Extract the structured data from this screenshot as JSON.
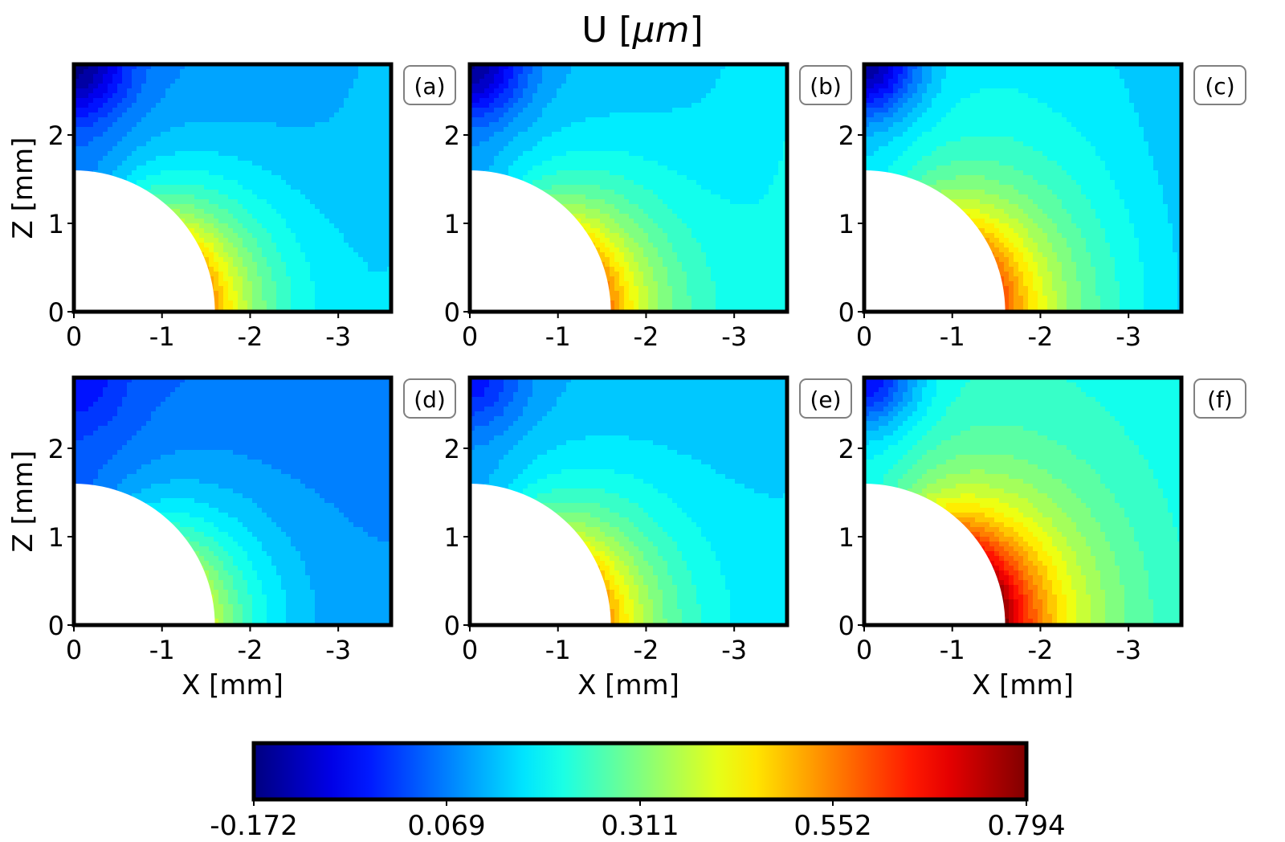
{
  "title": "U [",
  "title_unit": "μm",
  "title_close": "]",
  "chart_data": {
    "type": "heatmap",
    "title": "U [μm]",
    "colormap": "jet",
    "colorbar": {
      "min": -0.172,
      "max": 0.794,
      "ticks": [
        "-0.172",
        "0.069",
        "0.311",
        "0.552",
        "0.794"
      ],
      "tick_values": [
        -0.172,
        0.069,
        0.311,
        0.552,
        0.794
      ],
      "orientation": "horizontal"
    },
    "xlabel": "X [mm]",
    "ylabel": "Z [mm]",
    "xlim": [
      0,
      -3.6
    ],
    "ylim": [
      0,
      2.8
    ],
    "x_ticks": [
      "0",
      "-1",
      "-2",
      "-3"
    ],
    "x_tick_values": [
      0,
      -1,
      -2,
      -3
    ],
    "y_ticks": [
      "0",
      "1",
      "2"
    ],
    "y_tick_values": [
      0,
      1,
      2
    ],
    "hole_radius_mm": 1.6,
    "panels": [
      {
        "label": "(a)",
        "peak": 0.53,
        "top_left": -0.17,
        "far_field": 0.07,
        "right_edge": 0.13
      },
      {
        "label": "(b)",
        "peak": 0.55,
        "top_left": -0.16,
        "far_field": 0.11,
        "right_edge": 0.18
      },
      {
        "label": "(c)",
        "peak": 0.6,
        "top_left": -0.15,
        "far_field": 0.17,
        "right_edge": 0.12
      },
      {
        "label": "(d)",
        "peak": 0.37,
        "top_left": -0.05,
        "far_field": 0.04,
        "right_edge": 0.07
      },
      {
        "label": "(e)",
        "peak": 0.52,
        "top_left": -0.04,
        "far_field": 0.11,
        "right_edge": 0.14
      },
      {
        "label": "(f)",
        "peak": 0.79,
        "top_left": -0.05,
        "far_field": 0.21,
        "right_edge": 0.19
      }
    ]
  }
}
